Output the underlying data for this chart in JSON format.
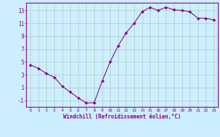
{
  "x": [
    0,
    1,
    2,
    3,
    4,
    5,
    6,
    7,
    8,
    9,
    10,
    11,
    12,
    13,
    14,
    15,
    16,
    17,
    18,
    19,
    20,
    21,
    22,
    23
  ],
  "y": [
    4.5,
    4.0,
    3.2,
    2.6,
    1.2,
    0.3,
    -0.6,
    -1.4,
    -1.35,
    2.0,
    5.0,
    7.5,
    9.5,
    11.0,
    12.8,
    13.5,
    13.0,
    13.5,
    13.1,
    13.0,
    12.8,
    11.8,
    11.8,
    11.5
  ],
  "line_color": "#880088",
  "marker": "D",
  "marker_size": 2.0,
  "bg_color": "#cceeff",
  "grid_color": "#aaccbb",
  "xlabel": "Windchill (Refroidissement éolien,°C)",
  "xlabel_color": "#880088",
  "ylabel_ticks": [
    -1,
    1,
    3,
    5,
    7,
    9,
    11,
    13
  ],
  "xtick_labels": [
    "0",
    "1",
    "2",
    "3",
    "4",
    "5",
    "6",
    "7",
    "8",
    "9",
    "10",
    "11",
    "12",
    "13",
    "14",
    "15",
    "16",
    "17",
    "18",
    "19",
    "20",
    "21",
    "22",
    "23"
  ],
  "ylim": [
    -2.0,
    14.2
  ],
  "xlim": [
    -0.5,
    23.5
  ],
  "tick_color": "#880088",
  "spine_color": "#880088",
  "figsize": [
    3.2,
    2.0
  ],
  "dpi": 100
}
